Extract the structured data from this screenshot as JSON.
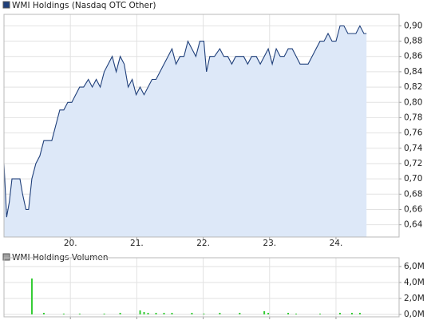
{
  "chart_data": [
    {
      "type": "line",
      "x": [
        19.0,
        19.04,
        19.08,
        19.12,
        19.24,
        19.28,
        19.33,
        19.37,
        19.42,
        19.48,
        19.54,
        19.6,
        19.72,
        19.78,
        19.84,
        19.9,
        19.96,
        20.02,
        20.08,
        20.14,
        20.2,
        20.27,
        20.33,
        20.39,
        20.45,
        20.51,
        20.57,
        20.63,
        20.69,
        20.75,
        20.81,
        20.87,
        20.93,
        20.99,
        21.05,
        21.11,
        21.17,
        21.23,
        21.29,
        21.35,
        21.41,
        21.47,
        21.53,
        21.59,
        21.65,
        21.71,
        21.77,
        21.83,
        21.89,
        21.95,
        22.01,
        22.05,
        22.1,
        22.17,
        22.25,
        22.31,
        22.37,
        22.43,
        22.49,
        22.55,
        22.61,
        22.67,
        22.73,
        22.8,
        22.86,
        22.92,
        22.98,
        23.04,
        23.1,
        23.16,
        23.22,
        23.28,
        23.34,
        23.4,
        23.46,
        23.52,
        23.58,
        23.64,
        23.7,
        23.76,
        23.82,
        23.88,
        23.94,
        24.0,
        24.06,
        24.12,
        24.18,
        24.24,
        24.3,
        24.36,
        24.42,
        24.46
      ],
      "series": [
        {
          "name": "WMI Holdings (Nasdaq OTC Other)",
          "color": "#1f3f7a",
          "fill": "#dde8f8",
          "values": [
            0.72,
            0.65,
            0.67,
            0.7,
            0.7,
            0.68,
            0.66,
            0.66,
            0.7,
            0.72,
            0.73,
            0.75,
            0.75,
            0.77,
            0.79,
            0.79,
            0.8,
            0.8,
            0.81,
            0.82,
            0.82,
            0.83,
            0.82,
            0.83,
            0.82,
            0.84,
            0.85,
            0.86,
            0.84,
            0.86,
            0.85,
            0.82,
            0.83,
            0.81,
            0.82,
            0.81,
            0.82,
            0.83,
            0.83,
            0.84,
            0.85,
            0.86,
            0.87,
            0.85,
            0.86,
            0.86,
            0.88,
            0.87,
            0.86,
            0.88,
            0.88,
            0.84,
            0.86,
            0.86,
            0.87,
            0.86,
            0.86,
            0.85,
            0.86,
            0.86,
            0.86,
            0.85,
            0.86,
            0.86,
            0.85,
            0.86,
            0.87,
            0.85,
            0.87,
            0.86,
            0.86,
            0.87,
            0.87,
            0.86,
            0.85,
            0.85,
            0.85,
            0.86,
            0.87,
            0.88,
            0.88,
            0.89,
            0.88,
            0.88,
            0.9,
            0.9,
            0.89,
            0.89,
            0.89,
            0.9,
            0.89,
            0.89
          ]
        }
      ],
      "xlim": [
        19.0,
        24.95
      ],
      "xticks": [
        {
          "value": 20,
          "label": "20."
        },
        {
          "value": 21,
          "label": "21."
        },
        {
          "value": 22,
          "label": "22."
        },
        {
          "value": 23,
          "label": "23."
        },
        {
          "value": 24,
          "label": "24."
        }
      ],
      "ylim": [
        0.624,
        0.915
      ],
      "yticks": [
        {
          "value": 0.64,
          "label": "0,64"
        },
        {
          "value": 0.66,
          "label": "0,66"
        },
        {
          "value": 0.68,
          "label": "0,68"
        },
        {
          "value": 0.7,
          "label": "0,70"
        },
        {
          "value": 0.72,
          "label": "0,72"
        },
        {
          "value": 0.74,
          "label": "0,74"
        },
        {
          "value": 0.76,
          "label": "0,76"
        },
        {
          "value": 0.78,
          "label": "0,78"
        },
        {
          "value": 0.8,
          "label": "0,80"
        },
        {
          "value": 0.82,
          "label": "0,82"
        },
        {
          "value": 0.84,
          "label": "0,84"
        },
        {
          "value": 0.86,
          "label": "0,86"
        },
        {
          "value": 0.88,
          "label": "0,88"
        },
        {
          "value": 0.9,
          "label": "0,90"
        }
      ],
      "grid": true
    },
    {
      "type": "bar",
      "x": [
        19.42,
        19.6,
        19.9,
        20.14,
        20.51,
        20.75,
        21.05,
        21.11,
        21.17,
        21.29,
        21.41,
        21.53,
        21.83,
        22.01,
        22.25,
        22.55,
        22.92,
        22.98,
        23.28,
        23.4,
        23.76,
        24.06,
        24.24,
        24.36
      ],
      "series": [
        {
          "name": "WMI Holdings Volumen",
          "color": "#a0a0a0",
          "bar_color": "#33cc33",
          "values": [
            4500000,
            200000,
            100000,
            100000,
            100000,
            200000,
            500000,
            300000,
            200000,
            200000,
            200000,
            200000,
            200000,
            100000,
            200000,
            200000,
            400000,
            200000,
            200000,
            100000,
            100000,
            200000,
            200000,
            200000
          ]
        }
      ],
      "xlim": [
        19.0,
        24.95
      ],
      "xticks": [
        20,
        21,
        22,
        23,
        24
      ],
      "ylim": [
        -300000,
        7100000
      ],
      "yticks": [
        {
          "value": 0,
          "label": "0,0M"
        },
        {
          "value": 2000000,
          "label": "2,0M"
        },
        {
          "value": 4000000,
          "label": "4,0M"
        },
        {
          "value": 6000000,
          "label": "6,0M"
        }
      ],
      "grid": true
    }
  ]
}
